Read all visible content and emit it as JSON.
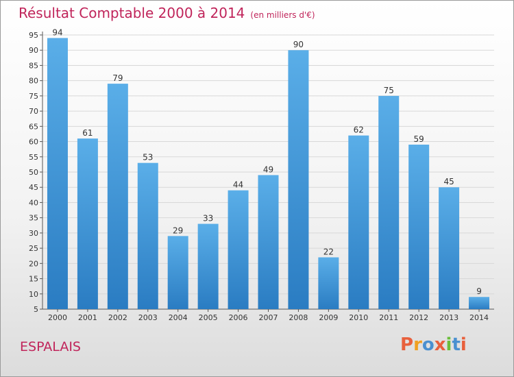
{
  "header": {
    "title": "Résultat Comptable 2000 à 2014",
    "subtitle": "(en milliers d'€)"
  },
  "footer": {
    "commune": "ESPALAIS",
    "logo_text": "Proxiti"
  },
  "colors": {
    "accent": "#c0245a",
    "bar_top": "#5aaee8",
    "bar_bottom": "#2a7cc2",
    "grid": "#d8d8d8",
    "logo": [
      "#e8603c",
      "#f0a020",
      "#4a90d0",
      "#e8603c",
      "#6abe3a",
      "#4a90d0",
      "#e8603c"
    ]
  },
  "chart_data": {
    "type": "bar",
    "categories": [
      "2000",
      "2001",
      "2002",
      "2003",
      "2004",
      "2005",
      "2006",
      "2007",
      "2008",
      "2009",
      "2010",
      "2011",
      "2012",
      "2013",
      "2014"
    ],
    "values": [
      94,
      61,
      79,
      53,
      29,
      33,
      44,
      49,
      90,
      22,
      62,
      75,
      59,
      45,
      9
    ],
    "yticks": [
      5,
      10,
      15,
      20,
      25,
      30,
      35,
      40,
      45,
      50,
      55,
      60,
      65,
      70,
      75,
      80,
      85,
      90,
      95
    ],
    "ylim": [
      5,
      95
    ],
    "grid": true,
    "legend": "none",
    "data_labels": true
  }
}
